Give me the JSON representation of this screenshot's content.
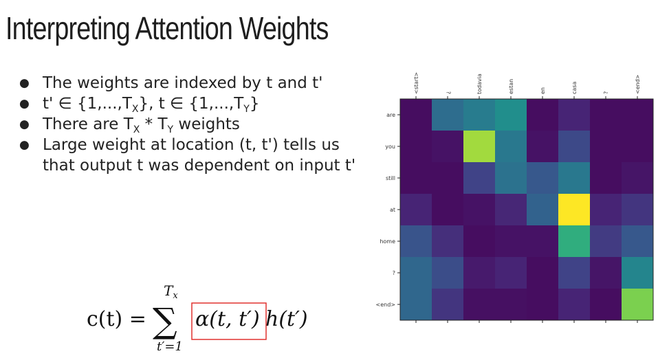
{
  "slide": {
    "title": "Interpreting Attention Weights",
    "bullets": [
      {
        "parts": [
          {
            "t": "The weights are indexed by t and t'"
          }
        ]
      },
      {
        "parts": [
          {
            "t": "t' ∈ {1,...,T"
          },
          {
            "sub": "X"
          },
          {
            "t": "}, t ∈ {1,...,T"
          },
          {
            "sub": "Y"
          },
          {
            "t": "}"
          }
        ]
      },
      {
        "parts": [
          {
            "t": "There are T"
          },
          {
            "sub": "X"
          },
          {
            "t": " * T"
          },
          {
            "sub": "Y"
          },
          {
            "t": " weights"
          }
        ]
      },
      {
        "parts": [
          {
            "t": "Large weight at location (t, t') tells us"
          }
        ]
      },
      {
        "parts": [
          {
            "t": "that output t was dependent on input t'"
          }
        ],
        "continuation": true
      }
    ],
    "formula": {
      "lhs": "c(t) =",
      "sum_symbol": "∑",
      "upper": "T",
      "upper_sub": "x",
      "lower": "t′=1",
      "alpha": "α(t, t′)",
      "h": "h(t′)",
      "highlight_color": "#e0302e"
    }
  },
  "chart_data": {
    "type": "heatmap",
    "x_labels": [
      "<start>",
      "¿",
      "todavia",
      "estan",
      "en",
      "casa",
      "?",
      "<end>"
    ],
    "y_labels": [
      "are",
      "you",
      "still",
      "at",
      "home",
      "?",
      "<end>"
    ],
    "values": [
      [
        0.05,
        0.45,
        0.52,
        0.62,
        0.05,
        0.14,
        0.05,
        0.05
      ],
      [
        0.05,
        0.07,
        0.9,
        0.5,
        0.07,
        0.28,
        0.05,
        0.05
      ],
      [
        0.05,
        0.05,
        0.25,
        0.47,
        0.35,
        0.5,
        0.05,
        0.08
      ],
      [
        0.14,
        0.05,
        0.07,
        0.15,
        0.4,
        1.0,
        0.14,
        0.2
      ],
      [
        0.33,
        0.18,
        0.05,
        0.07,
        0.07,
        0.72,
        0.22,
        0.35
      ],
      [
        0.42,
        0.3,
        0.1,
        0.14,
        0.05,
        0.25,
        0.08,
        0.57
      ],
      [
        0.42,
        0.2,
        0.06,
        0.06,
        0.05,
        0.14,
        0.05,
        0.85
      ]
    ],
    "colormap": "viridis",
    "vmin": 0,
    "vmax": 1
  }
}
